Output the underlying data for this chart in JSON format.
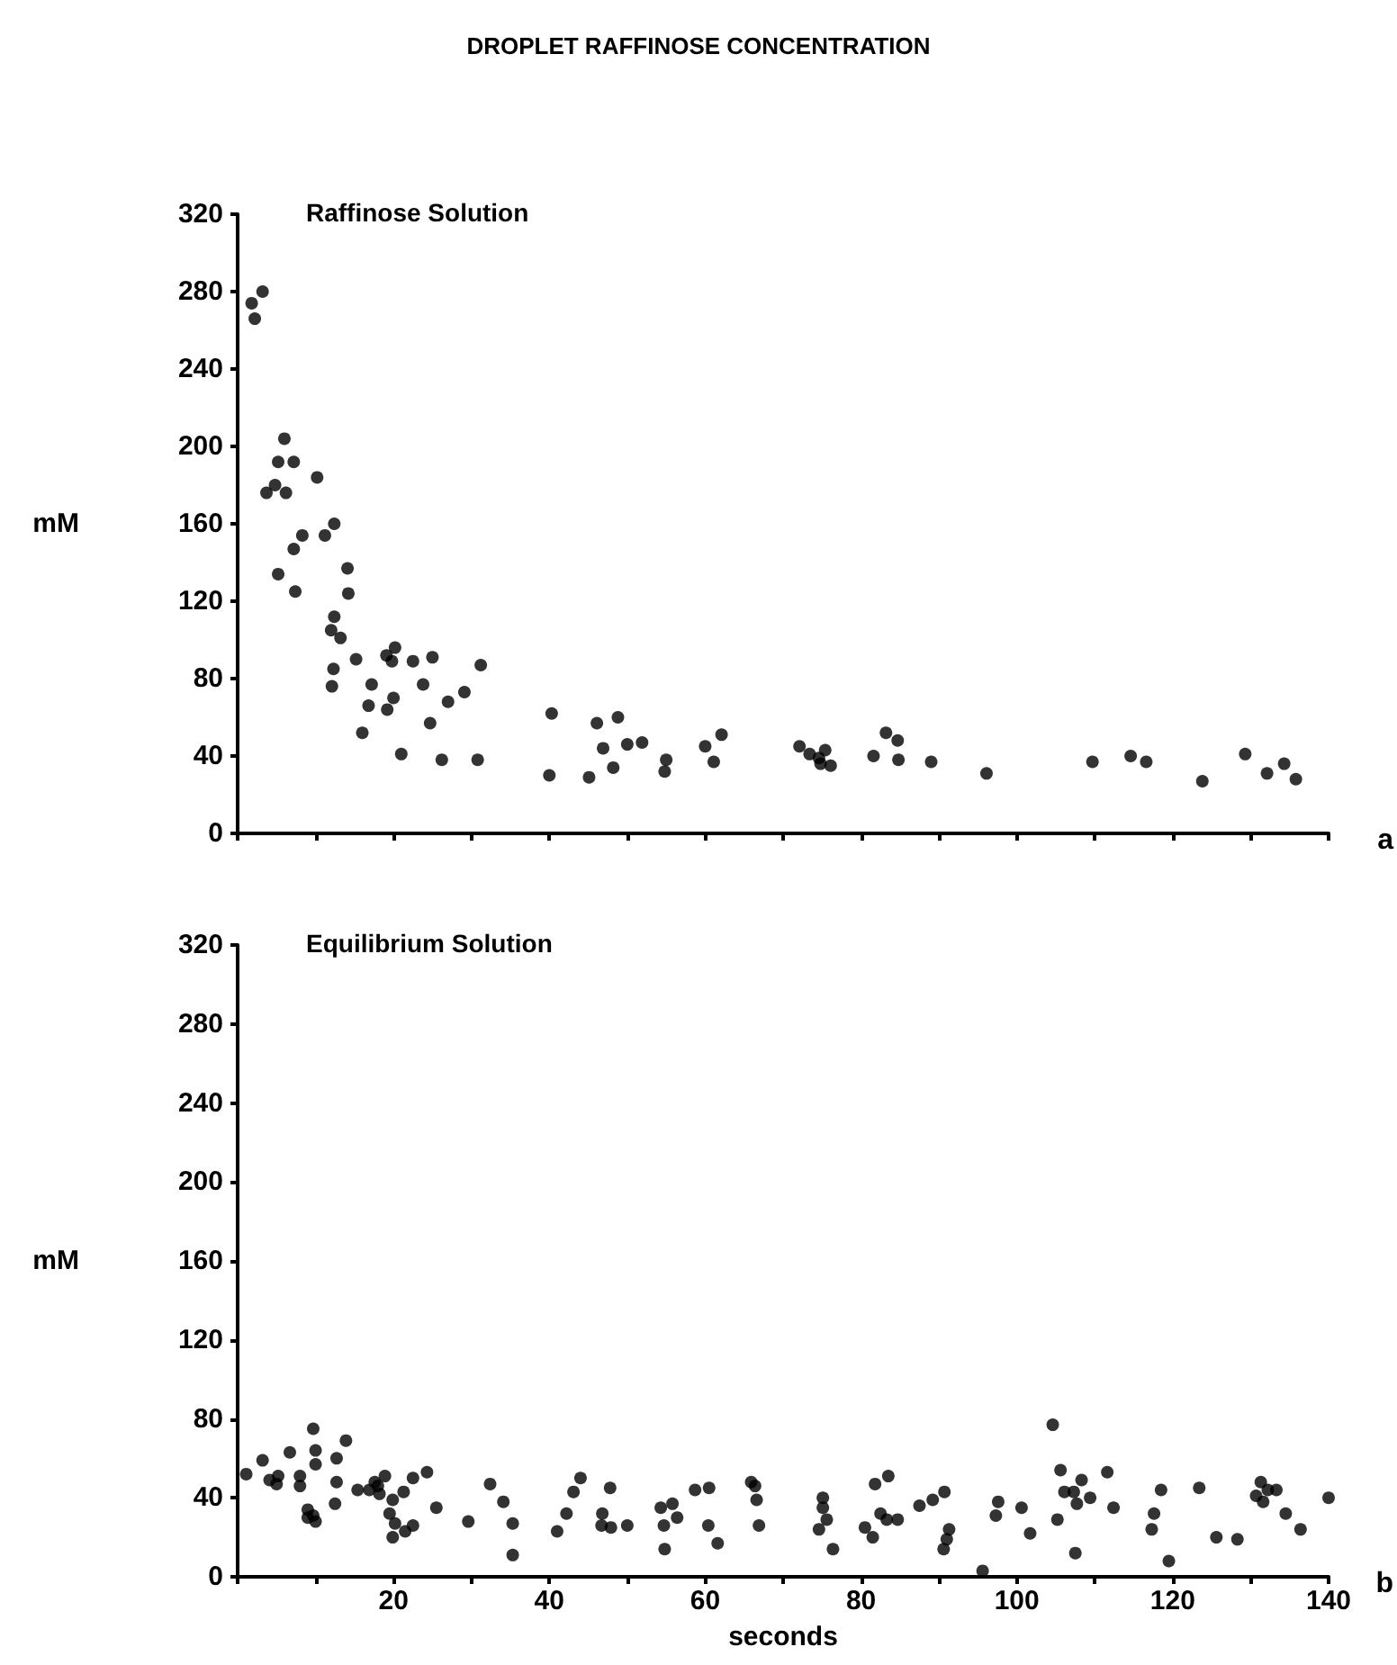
{
  "chart_data": [
    {
      "type": "scatter",
      "title": "DROPLET RAFFINOSE CONCENTRATION",
      "subtitle": "Raffinose Solution",
      "ylabel": "mM",
      "annotations": [
        "a"
      ],
      "marker": "circle",
      "grid": false,
      "tick_labels": "y",
      "xlim": [
        0,
        140
      ],
      "ylim": [
        0,
        320
      ],
      "xticks": [
        {
          "value": 0,
          "label": null
        },
        {
          "value": 10,
          "label": null
        },
        {
          "value": 20,
          "label": null
        },
        {
          "value": 30,
          "label": null
        },
        {
          "value": 40,
          "label": null
        },
        {
          "value": 50,
          "label": null
        },
        {
          "value": 60,
          "label": null
        },
        {
          "value": 70,
          "label": null
        },
        {
          "value": 80,
          "label": null
        },
        {
          "value": 90,
          "label": null
        },
        {
          "value": 100,
          "label": null
        },
        {
          "value": 110,
          "label": null
        },
        {
          "value": 120,
          "label": null
        },
        {
          "value": 130,
          "label": null
        },
        {
          "value": 140,
          "label": null
        }
      ],
      "yticks": [
        0,
        40,
        80,
        120,
        160,
        200,
        240,
        280,
        320
      ],
      "series": [
        {
          "color": "#000000",
          "x": [
            1.8,
            3.2,
            2.2,
            6,
            5.2,
            7.2,
            10.2,
            3.7,
            4.8,
            6.2,
            12.4,
            11.2,
            8.3,
            7.2,
            5.2,
            7.4,
            14.1,
            14.2,
            12.4,
            12,
            13.2,
            15.2,
            12.3,
            12.1,
            17.2,
            16.8,
            16,
            19.1,
            20.2,
            19.8,
            22.5,
            25,
            23.8,
            20,
            19.2,
            21,
            24.7,
            27,
            29.1,
            31.2,
            26.2,
            30.8,
            40.3,
            40,
            45.1,
            46.1,
            48.8,
            46.9,
            48.2,
            50,
            51.9,
            55,
            54.8,
            60,
            62.1,
            61.1,
            72.1,
            73.4,
            74.6,
            75.4,
            74.8,
            76.1,
            81.6,
            83.2,
            84.7,
            84.8,
            89,
            96.1,
            109.7,
            114.6,
            116.6,
            123.8,
            129.3,
            132.1,
            134.3,
            135.8
          ],
          "values": [
            274,
            280,
            266,
            204,
            192,
            192,
            184,
            176,
            180,
            176,
            160,
            154,
            154,
            147,
            134,
            125,
            137,
            124,
            112,
            105,
            101,
            90,
            85,
            76,
            77,
            66,
            52,
            92,
            96,
            89,
            89,
            91,
            77,
            70,
            64,
            41,
            57,
            68,
            73,
            87,
            38,
            38,
            62,
            30,
            29,
            57,
            60,
            44,
            34,
            46,
            47,
            38,
            32,
            45,
            51,
            37,
            45,
            41,
            39,
            43,
            36,
            35,
            40,
            52,
            48,
            38,
            37,
            31,
            37,
            40,
            37,
            27,
            41,
            31,
            36,
            28
          ]
        }
      ]
    },
    {
      "type": "scatter",
      "title": "Equilibrium Solution",
      "xlabel": "seconds",
      "ylabel": "mM",
      "annotations": [
        "b"
      ],
      "marker": "circle",
      "grid": false,
      "xlim": [
        0,
        140
      ],
      "ylim": [
        0,
        320
      ],
      "xticks": [
        {
          "value": 0,
          "label": null
        },
        {
          "value": 10,
          "label": null
        },
        20,
        {
          "value": 30,
          "label": null
        },
        40,
        {
          "value": 50,
          "label": null
        },
        60,
        {
          "value": 70,
          "label": null
        },
        80,
        {
          "value": 90,
          "label": null
        },
        100,
        {
          "value": 110,
          "label": null
        },
        120,
        {
          "value": 130,
          "label": null
        },
        140
      ],
      "yticks": [
        0,
        40,
        80,
        120,
        160,
        200,
        240,
        280,
        320
      ],
      "series": [
        {
          "color": "#000000",
          "x": [
            1.1,
            3.2,
            4.1,
            5.2,
            5,
            6.7,
            8,
            8,
            9.7,
            10,
            10,
            9,
            9,
            9.7,
            10,
            12.7,
            13.9,
            12.7,
            12.5,
            15.4,
            16.9,
            17.6,
            18.2,
            18.9,
            18,
            19.9,
            19.5,
            20.2,
            19.9,
            21.3,
            22.5,
            24.3,
            22.5,
            21.5,
            25.5,
            29.6,
            32.4,
            34.1,
            35.3,
            35.3,
            41,
            42.2,
            43.1,
            44,
            47.8,
            46.8,
            46.7,
            47.9,
            50,
            54.3,
            55.8,
            56.4,
            54.7,
            54.8,
            58.7,
            60.5,
            60.4,
            61.6,
            65.9,
            66.4,
            66.6,
            66.9,
            75.1,
            75.1,
            75.6,
            74.6,
            76.4,
            81.8,
            83.5,
            82.5,
            83.3,
            84.7,
            80.5,
            81.5,
            87.5,
            89.2,
            90.7,
            91.3,
            91,
            90.6,
            97.6,
            97.3,
            95.6,
            100.6,
            101.7,
            104.6,
            105.6,
            106.1,
            105.2,
            108.3,
            107.3,
            109.4,
            107.7,
            107.5,
            111.6,
            112.4,
            118.5,
            117.6,
            117.3,
            119.5,
            123.4,
            125.6,
            128.3,
            131.3,
            130.7,
            132.2,
            131.6,
            133.3,
            134.5,
            136.4,
            140
          ],
          "values": [
            52,
            59,
            49,
            51,
            47,
            63,
            51,
            46,
            75,
            64,
            57,
            34,
            30,
            31,
            28,
            60,
            69,
            48,
            37,
            44,
            44,
            48,
            42,
            51,
            46,
            39,
            32,
            27,
            20,
            43,
            50,
            53,
            26,
            23,
            35,
            28,
            47,
            38,
            27,
            11,
            23,
            32,
            43,
            50,
            45,
            32,
            26,
            25,
            26,
            35,
            37,
            30,
            26,
            14,
            44,
            45,
            26,
            17,
            48,
            46,
            39,
            26,
            40,
            35,
            29,
            24,
            14,
            47,
            51,
            32,
            29,
            29,
            25,
            20,
            36,
            39,
            43,
            24,
            19,
            14,
            38,
            31,
            3,
            35,
            22,
            77,
            54,
            43,
            29,
            49,
            43,
            40,
            37,
            12,
            53,
            35,
            44,
            32,
            24,
            8,
            45,
            20,
            19,
            48,
            41,
            44,
            38,
            44,
            32,
            24,
            40
          ]
        }
      ]
    }
  ]
}
